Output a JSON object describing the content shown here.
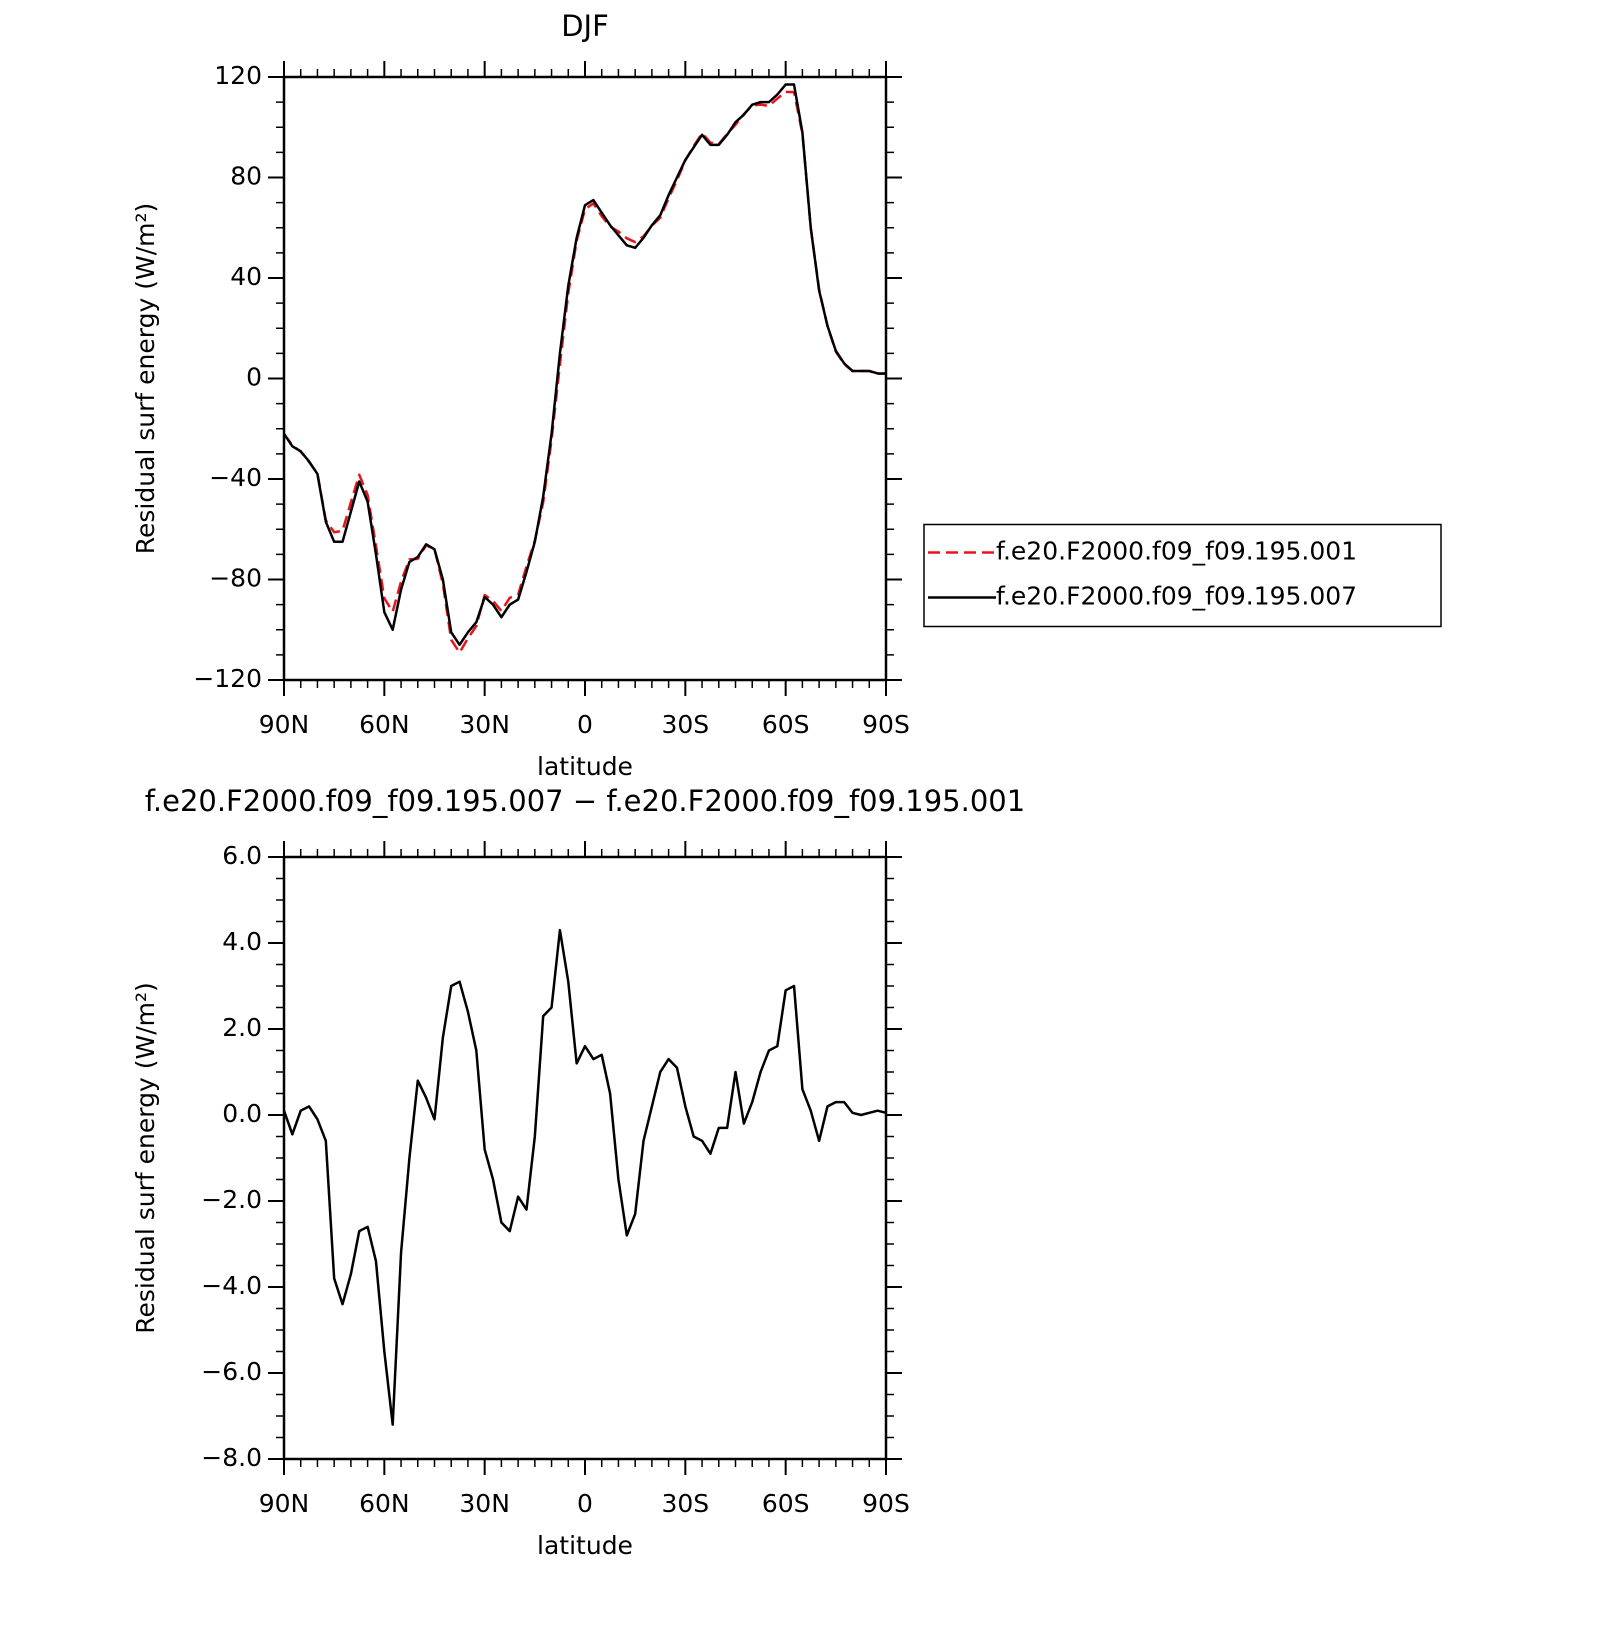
{
  "chart_data": [
    {
      "type": "line",
      "title": "DJF",
      "xlabel": "latitude",
      "ylabel": "Residual surf energy (W/m²)",
      "x": [
        90,
        87.5,
        85,
        82.5,
        80,
        77.5,
        75,
        72.5,
        70,
        67.5,
        65,
        62.5,
        60,
        57.5,
        55,
        52.5,
        50,
        47.5,
        45,
        42.5,
        40,
        37.5,
        35,
        32.5,
        30,
        27.5,
        25,
        22.5,
        20,
        17.5,
        15,
        12.5,
        10,
        7.5,
        5,
        2.5,
        0,
        -2.5,
        -5,
        -7.5,
        -10,
        -12.5,
        -15,
        -17.5,
        -20,
        -22.5,
        -25,
        -27.5,
        -30,
        -32.5,
        -35,
        -37.5,
        -40,
        -42.5,
        -45,
        -47.5,
        -50,
        -52.5,
        -55,
        -57.5,
        -60,
        -62.5,
        -65,
        -67.5,
        -70,
        -72.5,
        -75,
        -77.5,
        -80,
        -82.5,
        -85,
        -87.5,
        -90
      ],
      "series": [
        {
          "name": "f.e20.F2000.f09_f09.195.001",
          "color": "#e8141c",
          "line_style": "dashed",
          "values": [
            -22.1,
            -26.6,
            -29.1,
            -33.2,
            -37.9,
            -56.4,
            -61.2,
            -60.6,
            -49.3,
            -38.3,
            -46.4,
            -66.6,
            -87.5,
            -92.8,
            -80.8,
            -72,
            -71.8,
            -66.4,
            -67.9,
            -81.8,
            -104,
            -109.1,
            -103.4,
            -98.5,
            -86.2,
            -88.5,
            -92.5,
            -87.3,
            -86.1,
            -74.8,
            -64.5,
            -49.3,
            -24.5,
            5.7,
            33.9,
            54.8,
            67.4,
            69.7,
            64.6,
            60.5,
            58.5,
            55.8,
            54.3,
            56.6,
            60.8,
            64,
            71.7,
            78.9,
            86.8,
            92.5,
            97.6,
            93.9,
            93.3,
            97.3,
            101,
            105.2,
            108.7,
            109,
            108.5,
            111.4,
            114.1,
            114,
            97.4,
            59.9,
            35.6,
            20.8,
            10.7,
            5.7,
            2.95,
            3,
            2.95,
            1.9,
            1.95
          ]
        },
        {
          "name": "f.e20.F2000.f09_f09.195.007",
          "color": "#000000",
          "line_style": "solid",
          "values": [
            -22,
            -27,
            -29,
            -33,
            -38,
            -57,
            -65,
            -65,
            -53,
            -41,
            -49,
            -70,
            -93,
            -100,
            -84,
            -73,
            -71,
            -66,
            -68,
            -80,
            -101,
            -106,
            -101,
            -97,
            -87,
            -90,
            -95,
            -90,
            -88,
            -77,
            -65,
            -47,
            -22,
            10,
            37,
            56,
            69,
            71,
            66,
            61,
            57,
            53,
            52,
            56,
            61,
            65,
            73,
            80,
            87,
            92,
            97,
            93,
            93,
            97,
            102,
            105,
            109,
            110,
            110,
            113,
            117,
            117,
            98,
            60,
            35,
            21,
            11,
            6,
            3,
            3,
            3,
            2,
            2
          ]
        }
      ],
      "xlim": [
        90,
        -90
      ],
      "xticks": [
        {
          "value": 90,
          "label": "90N"
        },
        {
          "value": 60,
          "label": "60N"
        },
        {
          "value": 30,
          "label": "30N"
        },
        0,
        {
          "value": -30,
          "label": "30S"
        },
        {
          "value": -60,
          "label": "60S"
        },
        {
          "value": -90,
          "label": "90S"
        }
      ],
      "ylim": [
        -120,
        120
      ],
      "yticks": [
        {
          "value": -120,
          "label": "−120"
        },
        {
          "value": -80,
          "label": "−80"
        },
        {
          "value": -40,
          "label": "−40"
        },
        0,
        40,
        80,
        120
      ],
      "legend": "right"
    },
    {
      "type": "line",
      "title": "f.e20.F2000.f09_f09.195.007 − f.e20.F2000.f09_f09.195.001",
      "xlabel": "latitude",
      "ylabel": "Residual surf energy (W/m²)",
      "x": [
        90,
        87.5,
        85,
        82.5,
        80,
        77.5,
        75,
        72.5,
        70,
        67.5,
        65,
        62.5,
        60,
        57.5,
        55,
        52.5,
        50,
        47.5,
        45,
        42.5,
        40,
        37.5,
        35,
        32.5,
        30,
        27.5,
        25,
        22.5,
        20,
        17.5,
        15,
        12.5,
        10,
        7.5,
        5,
        2.5,
        0,
        -2.5,
        -5,
        -7.5,
        -10,
        -12.5,
        -15,
        -17.5,
        -20,
        -22.5,
        -25,
        -27.5,
        -30,
        -32.5,
        -35,
        -37.5,
        -40,
        -42.5,
        -45,
        -47.5,
        -50,
        -52.5,
        -55,
        -57.5,
        -60,
        -62.5,
        -65,
        -67.5,
        -70,
        -72.5,
        -75,
        -77.5,
        -80,
        -82.5,
        -85,
        -87.5,
        -90
      ],
      "values": [
        0.1,
        -0.45,
        0.1,
        0.2,
        -0.1,
        -0.6,
        -3.8,
        -4.4,
        -3.7,
        -2.7,
        -2.6,
        -3.4,
        -5.5,
        -7.2,
        -3.2,
        -1.0,
        0.8,
        0.4,
        -0.1,
        1.8,
        3.0,
        3.1,
        2.4,
        1.5,
        -0.8,
        -1.5,
        -2.5,
        -2.7,
        -1.9,
        -2.2,
        -0.5,
        2.3,
        2.5,
        4.3,
        3.1,
        1.2,
        1.6,
        1.3,
        1.4,
        0.5,
        -1.5,
        -2.8,
        -2.3,
        -0.6,
        0.2,
        1.0,
        1.3,
        1.1,
        0.2,
        -0.5,
        -0.6,
        -0.9,
        -0.3,
        -0.3,
        1.0,
        -0.2,
        0.3,
        1.0,
        1.5,
        1.6,
        2.9,
        3.0,
        0.6,
        0.1,
        -0.6,
        0.2,
        0.3,
        0.3,
        0.05,
        0,
        0.05,
        0.1,
        0.05
      ],
      "color": "#000000",
      "xlim": [
        90,
        -90
      ],
      "xticks": [
        {
          "value": 90,
          "label": "90N"
        },
        {
          "value": 60,
          "label": "60N"
        },
        {
          "value": 30,
          "label": "30N"
        },
        0,
        {
          "value": -30,
          "label": "30S"
        },
        {
          "value": -60,
          "label": "60S"
        },
        {
          "value": -90,
          "label": "90S"
        }
      ],
      "ylim": [
        -8,
        6
      ],
      "yticks": [
        {
          "value": -8,
          "label": "−8.0"
        },
        {
          "value": -6,
          "label": "−6.0"
        },
        {
          "value": -4,
          "label": "−4.0"
        },
        {
          "value": -2,
          "label": "−2.0"
        },
        {
          "value": 0,
          "label": "0.0"
        },
        {
          "value": 2,
          "label": "2.0"
        },
        {
          "value": 4,
          "label": "4.0"
        },
        {
          "value": 6,
          "label": "6.0"
        }
      ]
    }
  ]
}
